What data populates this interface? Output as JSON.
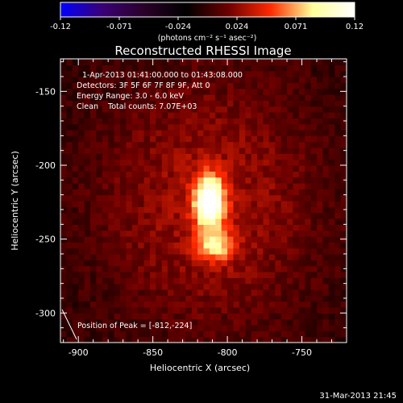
{
  "colorbar": {
    "tick_labels": [
      "-0.12",
      "-0.071",
      "-0.024",
      "0.024",
      "0.071",
      "0.12"
    ],
    "min": -0.12,
    "max": 0.12,
    "unit_label": "(photons cm⁻² s⁻¹ asec⁻²)"
  },
  "chart_data": {
    "type": "heatmap",
    "title": "Reconstructed RHESSI Image",
    "xlabel": "Heliocentric X (arcsec)",
    "ylabel": "Heliocentric Y (arcsec)",
    "xlim": [
      -912,
      -720
    ],
    "ylim": [
      -320,
      -128
    ],
    "x_ticks": [
      -900,
      -850,
      -800,
      -750
    ],
    "y_ticks": [
      -150,
      -200,
      -250,
      -300
    ],
    "x_tick_labels": [
      "-900",
      "-850",
      "-800",
      "-750"
    ],
    "y_tick_labels": [
      "-150",
      "-200",
      "-250",
      "-300"
    ],
    "peak": {
      "x": -812,
      "y": -224,
      "value": 0.12
    },
    "secondary_source": {
      "x": -808,
      "y": -254,
      "value": 0.06
    },
    "info_lines": [
      "1-Apr-2013 01:41:00.000 to 01:43:08.000",
      "Detectors: 3F 5F 6F 7F 8F 9F, Att 0",
      "Energy Range: 3.0 - 6.0 keV",
      "Clean    Total counts: 7.07E+03"
    ],
    "peak_label": "Position of Peak = [-812,-224]",
    "colormap": [
      "#0000ff",
      "#3a0075",
      "#2a0028",
      "#000000",
      "#6e0000",
      "#ff2a00",
      "#ffff9a",
      "#ffffff"
    ]
  },
  "footer": {
    "timestamp": "31-Mar-2013 21:45"
  }
}
